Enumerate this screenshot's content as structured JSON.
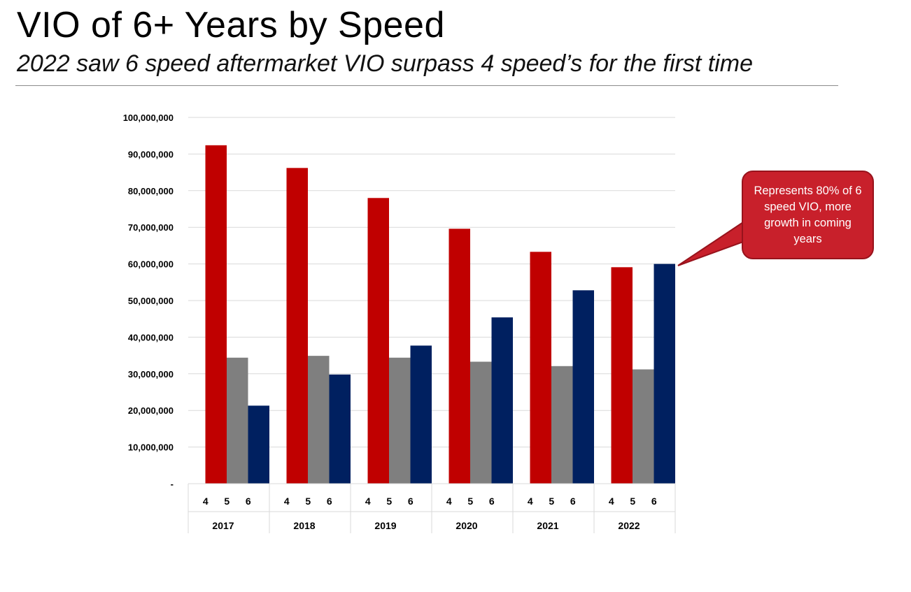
{
  "slide": {
    "title": "VIO of 6+ Years by Speed",
    "subtitle": "2022 saw 6 speed aftermarket VIO surpass 4 speed’s for the first time"
  },
  "callout": {
    "text": "Represents 80% of 6 speed VIO, more growth in coming years",
    "fill_color": "#c8202b",
    "border_color": "#98131c"
  },
  "chart_data": {
    "type": "bar",
    "title": "",
    "xlabel": "",
    "ylabel": "",
    "categories": [
      "2017",
      "2018",
      "2019",
      "2020",
      "2021",
      "2022"
    ],
    "sub_categories": [
      "4",
      "5",
      "6"
    ],
    "series": [
      {
        "values": [
          92400000,
          86200000,
          78000000,
          69600000,
          63300000,
          59100000
        ],
        "color": "#c00000"
      },
      {
        "values": [
          34400000,
          34900000,
          34400000,
          33300000,
          32100000,
          31200000
        ],
        "color": "#7f7f7f"
      },
      {
        "values": [
          21300000,
          29800000,
          37700000,
          45400000,
          52800000,
          60000000
        ],
        "color": "#002060"
      }
    ],
    "ylim": [
      0,
      100000000
    ],
    "yticks": [
      0,
      10000000,
      20000000,
      30000000,
      40000000,
      50000000,
      60000000,
      70000000,
      80000000,
      90000000,
      100000000
    ],
    "ytick_labels": [
      "-",
      "10,000,000",
      "20,000,000",
      "30,000,000",
      "40,000,000",
      "50,000,000",
      "60,000,000",
      "70,000,000",
      "80,000,000",
      "90,000,000",
      "100,000,000"
    ],
    "grid": true,
    "legend": "none"
  }
}
